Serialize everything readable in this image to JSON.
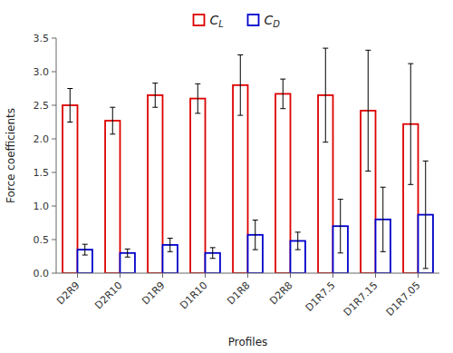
{
  "chart_data": {
    "type": "bar",
    "xlabel": "Profiles",
    "ylabel": "Force coefficients",
    "categories": [
      "D2R9",
      "D2R10",
      "D1R9",
      "D1R10",
      "D1R8",
      "D2R8",
      "D1R7.5",
      "D1R7.15",
      "D1R7.05"
    ],
    "series": [
      {
        "name": "CL",
        "color": "#dd0000",
        "values": [
          2.5,
          2.27,
          2.65,
          2.6,
          2.8,
          2.67,
          2.65,
          2.42,
          2.22
        ],
        "errors": [
          0.25,
          0.2,
          0.18,
          0.22,
          0.45,
          0.22,
          0.7,
          0.9,
          0.9
        ]
      },
      {
        "name": "CD",
        "color": "#0000cc",
        "values": [
          0.35,
          0.3,
          0.42,
          0.3,
          0.57,
          0.48,
          0.7,
          0.8,
          0.87
        ],
        "errors": [
          0.08,
          0.06,
          0.1,
          0.08,
          0.22,
          0.13,
          0.4,
          0.48,
          0.8
        ]
      }
    ],
    "ylim": [
      0.0,
      3.5
    ],
    "yticks": [
      {
        "value": 0,
        "label": "0.0"
      },
      0.5,
      {
        "value": 1,
        "label": "1.0"
      },
      1.5,
      {
        "value": 2,
        "label": "2.0"
      },
      2.5,
      {
        "value": 3,
        "label": "3.0"
      },
      3.5
    ],
    "grid": false,
    "legend": "top"
  }
}
